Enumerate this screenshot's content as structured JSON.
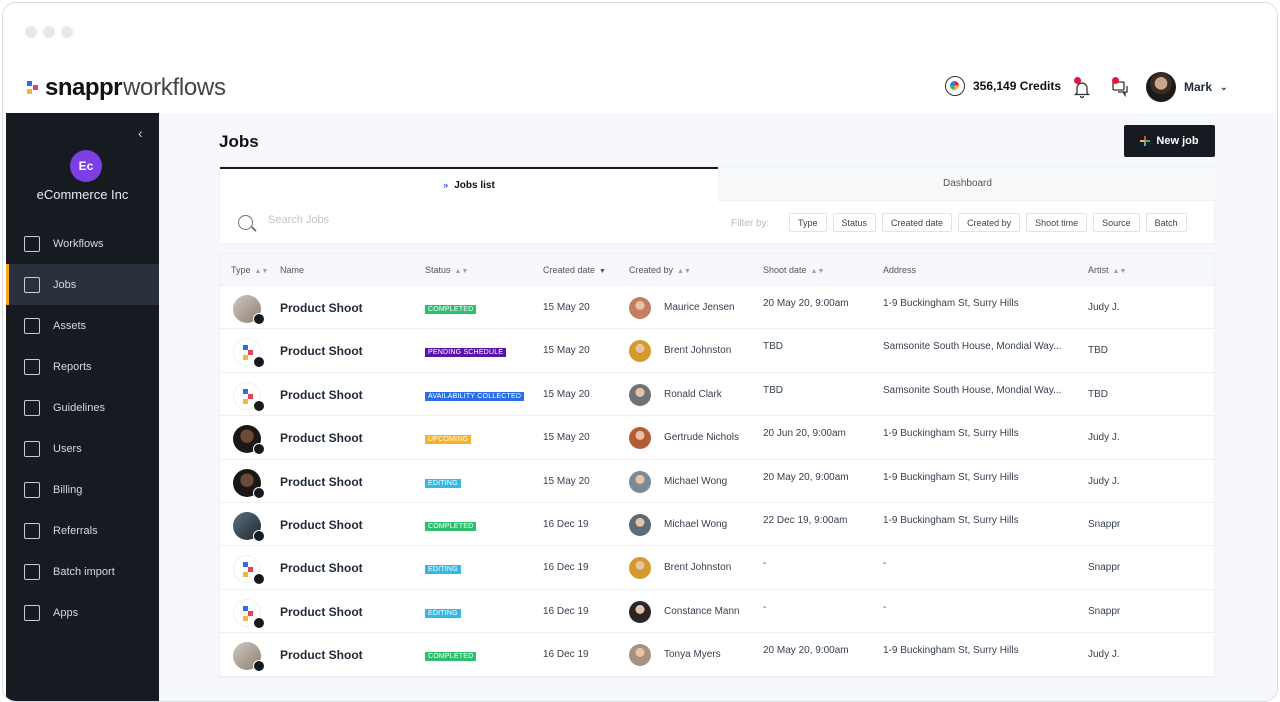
{
  "app": {
    "logo_text": "snappr",
    "logo_sub": "workflows",
    "credits": "356,149 Credits",
    "user_name": "Mark"
  },
  "sidebar": {
    "org_initials": "Ec",
    "org_name": "eCommerce Inc",
    "items": [
      {
        "label": "Workflows",
        "icon": "workflows-icon"
      },
      {
        "label": "Jobs",
        "icon": "jobs-icon"
      },
      {
        "label": "Assets",
        "icon": "assets-icon"
      },
      {
        "label": "Reports",
        "icon": "reports-icon"
      },
      {
        "label": "Guidelines",
        "icon": "guidelines-icon"
      },
      {
        "label": "Users",
        "icon": "users-icon"
      },
      {
        "label": "Billing",
        "icon": "billing-icon"
      },
      {
        "label": "Referrals",
        "icon": "referrals-icon"
      },
      {
        "label": "Batch import",
        "icon": "batch-import-icon"
      },
      {
        "label": "Apps",
        "icon": "apps-icon"
      }
    ]
  },
  "main": {
    "title": "Jobs",
    "new_job_label": "New job",
    "tabs": [
      "Jobs list",
      "Dashboard"
    ],
    "search_placeholder": "Search Jobs",
    "filter_label": "Filter by:",
    "filters": [
      "Type",
      "Status",
      "Created date",
      "Created by",
      "Shoot time",
      "Source",
      "Batch"
    ]
  },
  "table": {
    "headers": [
      "Type",
      "Name",
      "Status",
      "Created date",
      "Created by",
      "Shoot date",
      "Address",
      "Artist"
    ],
    "status_colors": {
      "COMPLETED": "#2ebf6e",
      "PENDING SCHEDULE": "#5b14a8",
      "AVAILABILITY COLLECTED": "#2b6fe6",
      "UPCOMING": "#f5b123",
      "EDITING": "#35b8e8"
    },
    "rows": [
      {
        "name": "Product Shoot",
        "status": "COMPLETED",
        "created": "15 May 20",
        "created_by": "Maurice Jensen",
        "shoot": "20 May 20, 9:00am",
        "address": "1-9 Buckingham St, Surry Hills",
        "artist": "Judy J."
      },
      {
        "name": "Product Shoot",
        "status": "PENDING SCHEDULE",
        "created": "15 May 20",
        "created_by": "Brent Johnston",
        "shoot": "TBD",
        "address": "Samsonite South House, Mondial Way...",
        "artist": "TBD"
      },
      {
        "name": "Product Shoot",
        "status": "AVAILABILITY COLLECTED",
        "created": "15 May 20",
        "created_by": "Ronald Clark",
        "shoot": "TBD",
        "address": "Samsonite South House, Mondial Way...",
        "artist": "TBD"
      },
      {
        "name": "Product Shoot",
        "status": "UPCOMING",
        "created": "15 May 20",
        "created_by": "Gertrude Nichols",
        "shoot": "20 Jun 20, 9:00am",
        "address": "1-9 Buckingham St, Surry Hills",
        "artist": "Judy J."
      },
      {
        "name": "Product Shoot",
        "status": "EDITING",
        "created": "15 May 20",
        "created_by": "Michael Wong",
        "shoot": "20 May 20, 9:00am",
        "address": "1-9 Buckingham St, Surry Hills",
        "artist": "Judy J."
      },
      {
        "name": "Product Shoot",
        "status": "COMPLETED",
        "created": "16 Dec 19",
        "created_by": "Michael Wong",
        "shoot": "22 Dec 19, 9:00am",
        "address": "1-9 Buckingham St, Surry Hills",
        "artist": "Snappr"
      },
      {
        "name": "Product Shoot",
        "status": "EDITING",
        "created": "16 Dec 19",
        "created_by": "Brent Johnston",
        "shoot": "-",
        "address": "-",
        "artist": "Snappr"
      },
      {
        "name": "Product Shoot",
        "status": "EDITING",
        "created": "16 Dec 19",
        "created_by": "Constance Mann",
        "shoot": "-",
        "address": "-",
        "artist": "Snappr"
      },
      {
        "name": "Product Shoot",
        "status": "COMPLETED",
        "created": "16 Dec 19",
        "created_by": "Tonya Myers",
        "shoot": "20 May 20, 9:00am",
        "address": "1-9 Buckingham St, Surry Hills",
        "artist": "Judy J."
      }
    ]
  }
}
